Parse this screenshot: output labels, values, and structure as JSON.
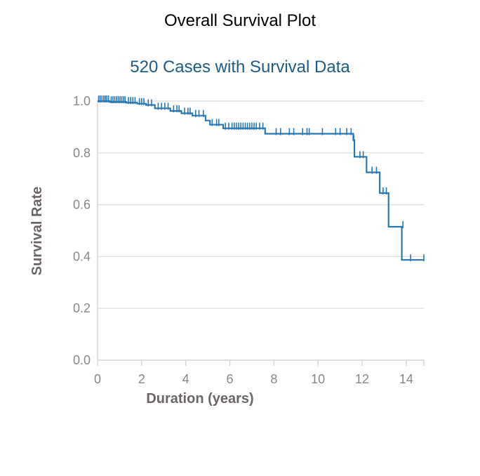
{
  "title": "Overall Survival Plot",
  "subtitle": "520 Cases with Survival Data",
  "chart_data": {
    "type": "line",
    "xlabel": "Duration (years)",
    "ylabel": "Survival Rate",
    "xlim": [
      0,
      14.8
    ],
    "ylim": [
      0,
      1.0
    ],
    "xticks": [
      "0",
      "2",
      "4",
      "6",
      "8",
      "10",
      "12",
      "14"
    ],
    "yticks": [
      "0.0",
      "0.2",
      "0.4",
      "0.6",
      "0.8",
      "1.0"
    ],
    "grid": true,
    "line_color": "#2a78b3",
    "series": [
      {
        "x": [
          0,
          0.55,
          1.3,
          1.8,
          2.2,
          2.6,
          3.3,
          3.8,
          4.3,
          4.9,
          5.1,
          5.7,
          7.6,
          11.6,
          11.65,
          12.2,
          12.8,
          13.2,
          13.8,
          14.8
        ],
        "y": [
          1.0,
          0.997,
          0.994,
          0.99,
          0.985,
          0.972,
          0.962,
          0.953,
          0.944,
          0.925,
          0.909,
          0.895,
          0.874,
          0.85,
          0.785,
          0.725,
          0.645,
          0.515,
          0.387,
          0.387
        ]
      }
    ],
    "censored": [
      {
        "x": 0.05,
        "y": 1.0
      },
      {
        "x": 0.12,
        "y": 1.0
      },
      {
        "x": 0.2,
        "y": 1.0
      },
      {
        "x": 0.28,
        "y": 1.0
      },
      {
        "x": 0.35,
        "y": 1.0
      },
      {
        "x": 0.42,
        "y": 1.0
      },
      {
        "x": 0.5,
        "y": 1.0
      },
      {
        "x": 0.62,
        "y": 0.997
      },
      {
        "x": 0.7,
        "y": 0.997
      },
      {
        "x": 0.78,
        "y": 0.997
      },
      {
        "x": 0.86,
        "y": 0.997
      },
      {
        "x": 0.94,
        "y": 0.997
      },
      {
        "x": 1.02,
        "y": 0.997
      },
      {
        "x": 1.1,
        "y": 0.997
      },
      {
        "x": 1.18,
        "y": 0.997
      },
      {
        "x": 1.25,
        "y": 0.997
      },
      {
        "x": 1.4,
        "y": 0.994
      },
      {
        "x": 1.5,
        "y": 0.994
      },
      {
        "x": 1.6,
        "y": 0.994
      },
      {
        "x": 1.7,
        "y": 0.994
      },
      {
        "x": 1.9,
        "y": 0.99
      },
      {
        "x": 2.0,
        "y": 0.99
      },
      {
        "x": 2.1,
        "y": 0.99
      },
      {
        "x": 2.3,
        "y": 0.985
      },
      {
        "x": 2.45,
        "y": 0.985
      },
      {
        "x": 2.75,
        "y": 0.972
      },
      {
        "x": 2.9,
        "y": 0.972
      },
      {
        "x": 3.05,
        "y": 0.972
      },
      {
        "x": 3.2,
        "y": 0.972
      },
      {
        "x": 3.45,
        "y": 0.962
      },
      {
        "x": 3.6,
        "y": 0.962
      },
      {
        "x": 3.7,
        "y": 0.962
      },
      {
        "x": 3.95,
        "y": 0.953
      },
      {
        "x": 4.1,
        "y": 0.953
      },
      {
        "x": 4.2,
        "y": 0.953
      },
      {
        "x": 4.45,
        "y": 0.944
      },
      {
        "x": 4.6,
        "y": 0.944
      },
      {
        "x": 4.8,
        "y": 0.944
      },
      {
        "x": 5.2,
        "y": 0.909
      },
      {
        "x": 5.4,
        "y": 0.909
      },
      {
        "x": 5.5,
        "y": 0.909
      },
      {
        "x": 5.8,
        "y": 0.895
      },
      {
        "x": 5.95,
        "y": 0.895
      },
      {
        "x": 6.1,
        "y": 0.895
      },
      {
        "x": 6.2,
        "y": 0.895
      },
      {
        "x": 6.3,
        "y": 0.895
      },
      {
        "x": 6.4,
        "y": 0.895
      },
      {
        "x": 6.5,
        "y": 0.895
      },
      {
        "x": 6.6,
        "y": 0.895
      },
      {
        "x": 6.7,
        "y": 0.895
      },
      {
        "x": 6.8,
        "y": 0.895
      },
      {
        "x": 6.9,
        "y": 0.895
      },
      {
        "x": 7.0,
        "y": 0.895
      },
      {
        "x": 7.1,
        "y": 0.895
      },
      {
        "x": 7.2,
        "y": 0.895
      },
      {
        "x": 7.35,
        "y": 0.895
      },
      {
        "x": 7.5,
        "y": 0.895
      },
      {
        "x": 8.1,
        "y": 0.874
      },
      {
        "x": 8.3,
        "y": 0.874
      },
      {
        "x": 8.7,
        "y": 0.874
      },
      {
        "x": 8.9,
        "y": 0.874
      },
      {
        "x": 9.3,
        "y": 0.874
      },
      {
        "x": 9.5,
        "y": 0.874
      },
      {
        "x": 9.6,
        "y": 0.874
      },
      {
        "x": 10.2,
        "y": 0.874
      },
      {
        "x": 10.8,
        "y": 0.874
      },
      {
        "x": 11.0,
        "y": 0.874
      },
      {
        "x": 11.3,
        "y": 0.874
      },
      {
        "x": 11.5,
        "y": 0.874
      },
      {
        "x": 11.62,
        "y": 0.85
      },
      {
        "x": 11.9,
        "y": 0.785
      },
      {
        "x": 12.05,
        "y": 0.785
      },
      {
        "x": 12.45,
        "y": 0.725
      },
      {
        "x": 12.65,
        "y": 0.725
      },
      {
        "x": 12.95,
        "y": 0.645
      },
      {
        "x": 13.1,
        "y": 0.645
      },
      {
        "x": 13.85,
        "y": 0.515
      },
      {
        "x": 14.2,
        "y": 0.387
      },
      {
        "x": 14.8,
        "y": 0.387
      }
    ]
  }
}
